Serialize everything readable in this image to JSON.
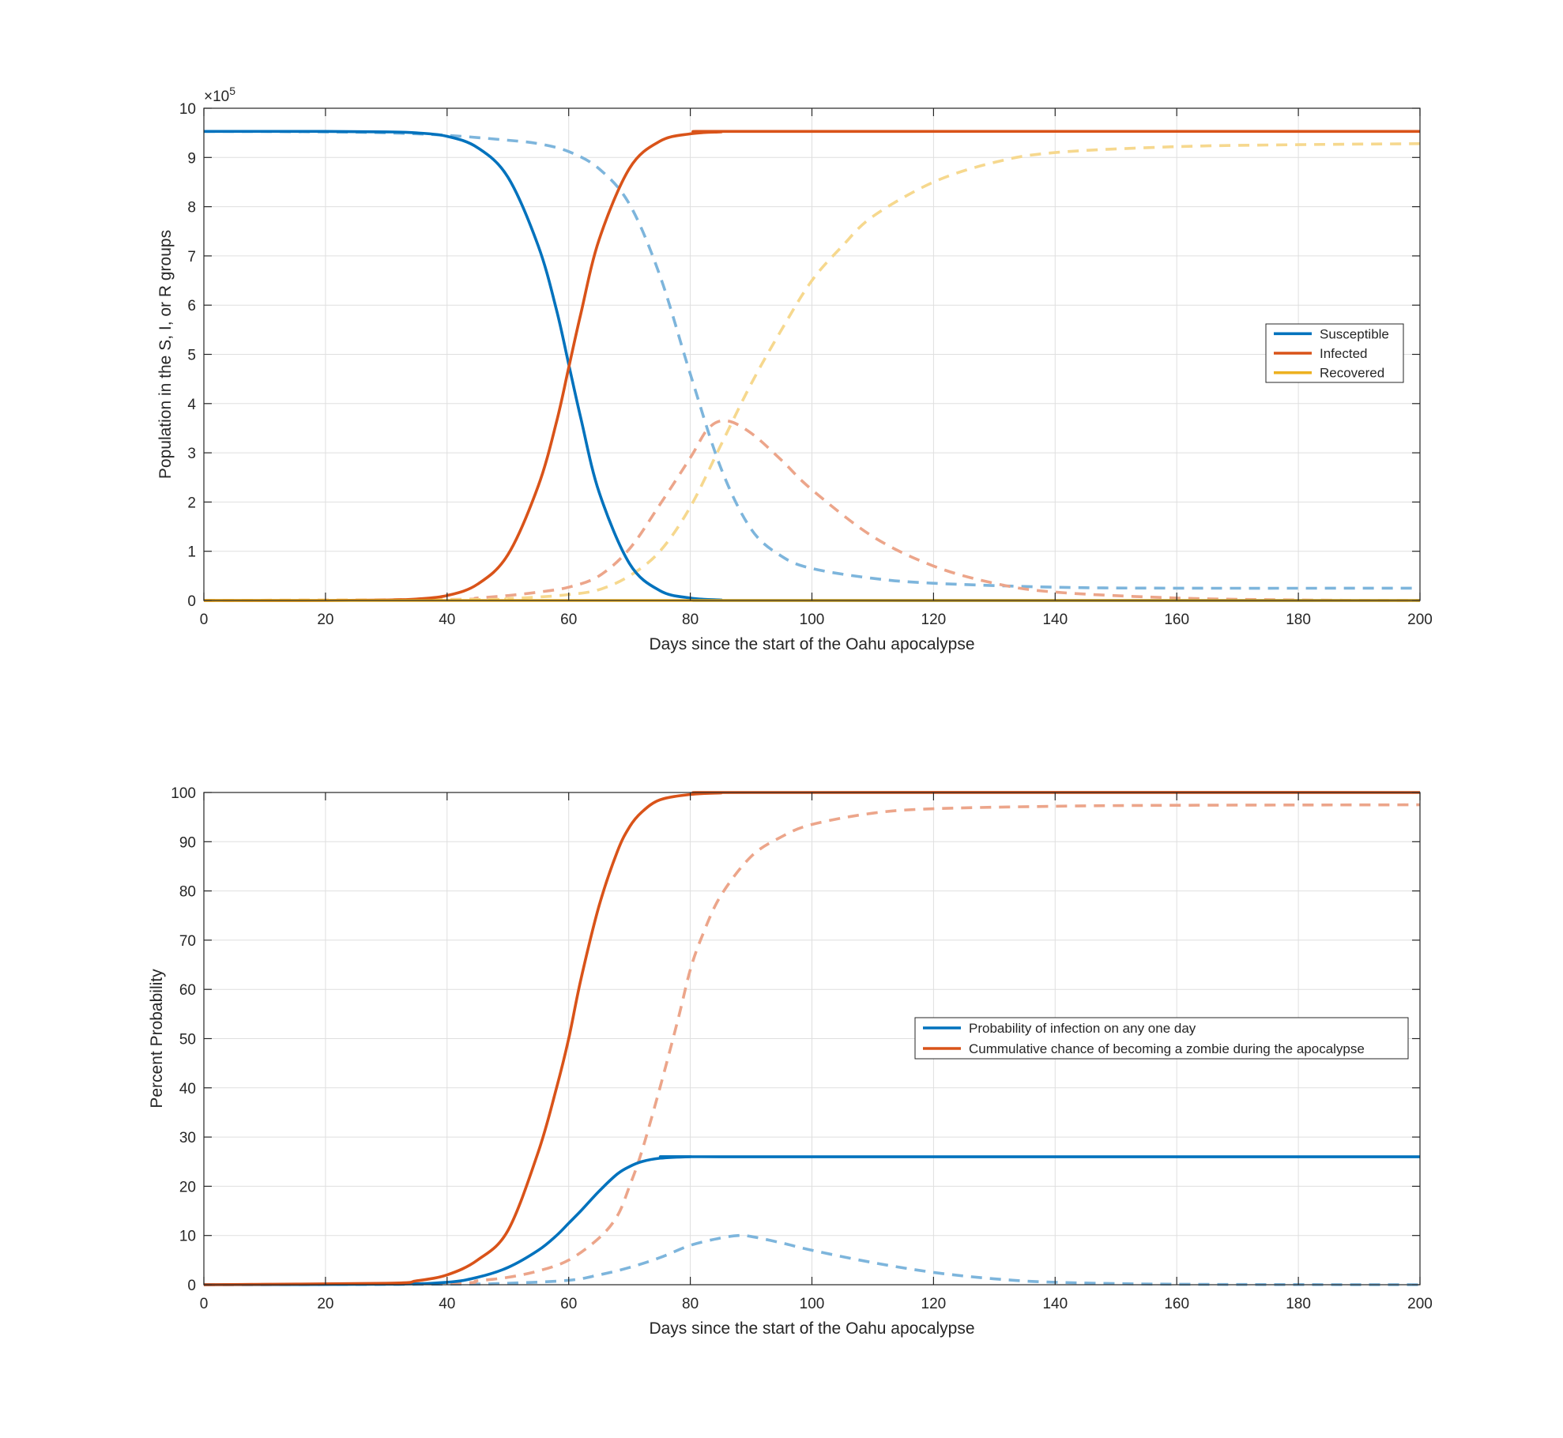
{
  "colors": {
    "susceptible": "#0072BD",
    "infected": "#D95319",
    "recovered": "#EDB120",
    "susceptible_dashed": "#7DB5DC",
    "infected_dashed": "#ECA58A",
    "recovered_dashed": "#F6D88E"
  },
  "chart_data": [
    {
      "type": "line",
      "xlabel": "Days since the start of the Oahu apocalypse",
      "ylabel": "Population in the S, I, or R groups",
      "xlim": [
        0,
        200
      ],
      "ylim": [
        0,
        1000000
      ],
      "xticks": [
        "0",
        "20",
        "40",
        "60",
        "80",
        "100",
        "120",
        "140",
        "160",
        "180",
        "200"
      ],
      "yticks": [
        "0",
        "1",
        "2",
        "3",
        "4",
        "5",
        "6",
        "7",
        "8",
        "9",
        "10"
      ],
      "exponent_base": "×10",
      "exponent_power": "5",
      "grid": true,
      "legend_position": "east",
      "series": [
        {
          "name": "Susceptible",
          "color_key": "susceptible",
          "style": "solid",
          "x": [
            0,
            20,
            30,
            35,
            40,
            45,
            50,
            55,
            58,
            60,
            62,
            65,
            70,
            75,
            80,
            85,
            90,
            200
          ],
          "y": [
            953000,
            953000,
            952000,
            950000,
            943000,
            920000,
            860000,
            720000,
            590000,
            480000,
            370000,
            220000,
            75000,
            20000,
            5000,
            1000,
            0,
            0
          ]
        },
        {
          "name": "Infected",
          "color_key": "infected",
          "style": "solid",
          "x": [
            0,
            20,
            30,
            35,
            40,
            45,
            50,
            55,
            58,
            60,
            62,
            65,
            70,
            75,
            80,
            85,
            90,
            200
          ],
          "y": [
            0,
            0,
            1000,
            3000,
            10000,
            33000,
            93000,
            233000,
            363000,
            473000,
            583000,
            733000,
            878000,
            933000,
            948000,
            952000,
            953000,
            953000
          ]
        },
        {
          "name": "Recovered",
          "color_key": "recovered",
          "style": "solid",
          "x": [
            0,
            200
          ],
          "y": [
            0,
            0
          ]
        },
        {
          "name": "",
          "color_key": "susceptible_dashed",
          "style": "dashed",
          "x": [
            0,
            20,
            30,
            40,
            50,
            55,
            60,
            65,
            70,
            75,
            80,
            85,
            90,
            95,
            100,
            110,
            120,
            140,
            160,
            200
          ],
          "y": [
            953000,
            952000,
            950000,
            945000,
            935000,
            928000,
            912000,
            877000,
            805000,
            660000,
            460000,
            270000,
            145000,
            90000,
            65000,
            45000,
            35000,
            27000,
            25000,
            25000
          ]
        },
        {
          "name": "",
          "color_key": "infected_dashed",
          "style": "dashed",
          "x": [
            0,
            40,
            45,
            50,
            55,
            60,
            65,
            70,
            75,
            80,
            83,
            86,
            90,
            95,
            100,
            110,
            120,
            130,
            140,
            160,
            180,
            200
          ],
          "y": [
            0,
            2000,
            5000,
            10000,
            17000,
            27000,
            50000,
            105000,
            195000,
            290000,
            350000,
            365000,
            340000,
            285000,
            225000,
            130000,
            70000,
            35000,
            17000,
            5000,
            1000,
            0
          ]
        },
        {
          "name": "",
          "color_key": "recovered_dashed",
          "style": "dashed",
          "x": [
            0,
            45,
            50,
            55,
            60,
            65,
            70,
            75,
            80,
            85,
            90,
            95,
            100,
            105,
            110,
            120,
            130,
            140,
            160,
            180,
            200
          ],
          "y": [
            0,
            2000,
            4000,
            7000,
            12000,
            22000,
            50000,
            100000,
            190000,
            315000,
            440000,
            550000,
            650000,
            720000,
            780000,
            850000,
            890000,
            910000,
            922000,
            926000,
            928000
          ]
        }
      ]
    },
    {
      "type": "line",
      "xlabel": "Days since the start of the Oahu apocalypse",
      "ylabel": "Percent Probability",
      "xlim": [
        0,
        200
      ],
      "ylim": [
        0,
        100
      ],
      "xticks": [
        "0",
        "20",
        "40",
        "60",
        "80",
        "100",
        "120",
        "140",
        "160",
        "180",
        "200"
      ],
      "yticks": [
        "0",
        "10",
        "20",
        "30",
        "40",
        "50",
        "60",
        "70",
        "80",
        "90",
        "100"
      ],
      "grid": true,
      "legend_position": "east",
      "series": [
        {
          "name": "Probability of infection on any one day",
          "color_key": "susceptible",
          "style": "solid",
          "x": [
            0,
            30,
            40,
            45,
            50,
            55,
            58,
            60,
            62,
            65,
            68,
            70,
            72,
            75,
            80,
            85,
            200
          ],
          "y": [
            0,
            0.1,
            0.5,
            1.5,
            3.5,
            7,
            10,
            12.5,
            15,
            19,
            22.5,
            24,
            25,
            25.7,
            26,
            26,
            26
          ]
        },
        {
          "name": "Cummulative chance of becoming a zombie during the apocalypse",
          "color_key": "infected",
          "style": "solid",
          "x": [
            0,
            30,
            35,
            40,
            45,
            50,
            55,
            58,
            60,
            62,
            65,
            68,
            70,
            72,
            75,
            80,
            85,
            90,
            200
          ],
          "y": [
            0,
            0.3,
            0.8,
            2,
            5,
            11,
            27,
            40,
            50,
            62,
            77,
            88,
            93,
            96,
            98.5,
            99.6,
            99.9,
            100,
            100
          ]
        },
        {
          "name": "",
          "color_key": "susceptible_dashed",
          "style": "dashed",
          "x": [
            0,
            40,
            50,
            60,
            65,
            70,
            75,
            80,
            85,
            88,
            90,
            95,
            100,
            110,
            120,
            130,
            140,
            160,
            200
          ],
          "y": [
            0,
            0.1,
            0.3,
            0.9,
            2,
            3.5,
            5.5,
            8,
            9.5,
            10,
            9.8,
            8.5,
            7,
            4.5,
            2.5,
            1.2,
            0.5,
            0.1,
            0
          ]
        },
        {
          "name": "",
          "color_key": "infected_dashed",
          "style": "dashed",
          "x": [
            0,
            40,
            45,
            50,
            55,
            60,
            65,
            68,
            70,
            72,
            75,
            78,
            80,
            82,
            85,
            90,
            95,
            100,
            110,
            120,
            140,
            160,
            200
          ],
          "y": [
            0,
            0.3,
            0.8,
            1.5,
            2.8,
            5,
            9.5,
            14,
            20,
            27,
            40,
            54,
            64,
            71,
            79,
            87,
            91,
            93.5,
            95.8,
            96.7,
            97.2,
            97.4,
            97.5
          ]
        }
      ]
    }
  ]
}
